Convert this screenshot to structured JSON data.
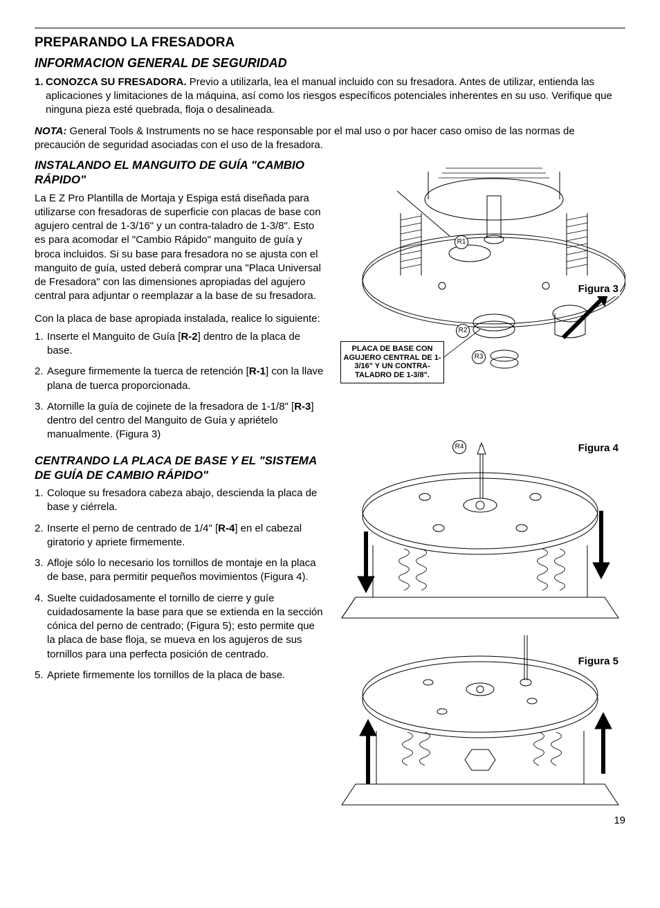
{
  "page_number": "19",
  "headings": {
    "main": "PREPARANDO LA FRESADORA",
    "sub1": "INFORMACION GENERAL DE SEGURIDAD",
    "sub2": "INSTALANDO EL MANGUITO DE GUÍA \"CAMBIO RÁPIDO\"",
    "sub3": "CENTRANDO LA PLACA DE BASE Y EL \"SISTEMA DE GUÍA DE CAMBIO RÁPIDO\""
  },
  "safety_item": {
    "num": "1.",
    "lead": "CONOZCA SU FRESADORA.",
    "rest": " Previo a utilizarla, lea el manual incluido con su fresadora. Antes de utilizar, entienda las aplicaciones y limitaciones de la máquina, así como los riesgos específicos potenciales inherentes en su uso. Verifique que ninguna pieza esté quebrada, floja o desalineada."
  },
  "note": {
    "label": "NOTA:",
    "text": " General Tools & Instruments no se hace responsable por el mal uso o por hacer caso omiso de las normas de precaución de seguridad asociadas con el uso de la fresadora."
  },
  "install_intro_p1": "La E Z Pro Plantilla de Mortaja y Espiga está diseñada para utilizarse con fresadoras de superficie con placas de base con agujero central de 1-3/16\" y un contra-taladro de 1-3/8\". Esto es para acomodar el \"Cambio Rápido\" manguito de guía y broca incluidos. Si su base para fresadora no se ajusta con el manguito de guía, usted deberá comprar una \"Placa Universal de Fresadora\" con las dimensiones apropiadas del agujero central para adjuntar o reemplazar a la base de su fresadora.",
  "install_intro_p2": "Con la placa de base apropiada instalada, realice lo siguiente:",
  "install_steps": [
    {
      "n": "1.",
      "before": "Inserte el Manguito de Guía [",
      "ref": "R-2",
      "after": "] dentro de la placa de base."
    },
    {
      "n": "2.",
      "before": "Asegure firmemente la tuerca de retención [",
      "ref": "R-1",
      "after": "] con la llave plana de tuerca proporcionada."
    },
    {
      "n": "3.",
      "before": "Atornille la guía de cojinete de la fresadora de 1-1/8\" [",
      "ref": "R-3",
      "after": "] dentro del centro del Manguito de Guía y apriételo manualmente. (Figura 3)"
    }
  ],
  "center_steps": [
    {
      "n": "1.",
      "text": "Coloque su fresadora cabeza abajo, descienda la placa de base y ciérrela."
    },
    {
      "n": "2.",
      "before": "Inserte el perno de centrado de 1/4\" [",
      "ref": "R-4",
      "after": "] en el cabezal giratorio y apriete firmemente."
    },
    {
      "n": "3.",
      "text": "Afloje sólo lo necesario los tornillos de montaje en la placa de base, para permitir pequeños movimientos (Figura 4)."
    },
    {
      "n": "4.",
      "text": "Suelte cuidadosamente  el tornillo de cierre y guíe cuidadosamente la base para que se extienda en la sección cónica del perno de centrado; (Figura 5); esto permite  que la placa de base floja, se mueva en los agujeros de sus tornillos para una perfecta posición de centrado."
    },
    {
      "n": "5.",
      "text": "Apriete firmemente los tornillos de la placa de base."
    }
  ],
  "figures": {
    "f3_label": "Figura 3",
    "f4_label": "Figura 4",
    "f5_label": "Figura 5",
    "callout": "PLACA DE BASE CON AGUJERO CENTRAL DE 1-3/16\" Y UN CONTRA-TALADRO DE 1-3/8\".",
    "r1": "R1",
    "r2": "R2",
    "r3": "R3",
    "r4": "R4"
  },
  "colors": {
    "text": "#000000",
    "bg": "#ffffff",
    "stroke": "#000000"
  }
}
